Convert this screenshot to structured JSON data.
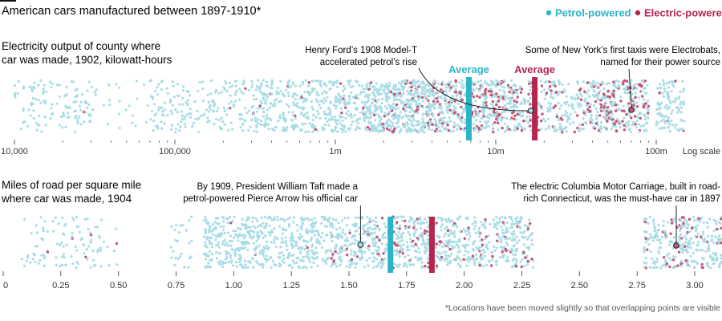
{
  "title": "American cars manufactured between 1897-1910*",
  "legend": [
    {
      "label": "Petrol-powered",
      "color": "#2bb5c8"
    },
    {
      "label": "Electric-powered",
      "color": "#b5264f"
    }
  ],
  "colors": {
    "petrol_dot": "#a9dde6",
    "electric_dot": "#c2577a",
    "petrol_avg": "#2bb5c8",
    "electric_avg": "#b5264f",
    "axis": "#333333"
  },
  "footnote": "*Locations have been moved slightly so that overlapping points are visible",
  "chart_data": [
    {
      "type": "scatter",
      "title": "Electricity output of county where car was made, 1902, kilowatt-hours",
      "title_lines": [
        "Electricity output of county where",
        "car was made, 1902, kilowatt-hours"
      ],
      "scale": "log",
      "scale_label": "Log scale",
      "xlim": [
        10000,
        150000000
      ],
      "ticks": [
        {
          "value": 10000,
          "label": "10,000"
        },
        {
          "value": 100000,
          "label": "100,000"
        },
        {
          "value": 1000000,
          "label": "1m"
        },
        {
          "value": 10000000,
          "label": "10m"
        },
        {
          "value": 100000000,
          "label": "100m"
        }
      ],
      "averages": [
        {
          "series": "Petrol-powered",
          "value": 6800000,
          "label": "Average"
        },
        {
          "series": "Electric-powered",
          "value": 17500000,
          "label": "Average"
        }
      ],
      "annotations": [
        {
          "lines": [
            "Henry Ford’s 1908 Model-T",
            "accelerated petrol’s rise"
          ],
          "value": 16500000,
          "series": "Petrol-powered"
        },
        {
          "lines": [
            "Some of New York’s first taxis were Electrobats,",
            "named for their power source"
          ],
          "value": 70000000,
          "series": "Electric-powered"
        }
      ],
      "clusters": [
        {
          "lo": 10000,
          "hi": 30000,
          "n": 120,
          "electric": 0.02
        },
        {
          "lo": 30000,
          "hi": 70000,
          "n": 25,
          "electric": 0.0
        },
        {
          "lo": 70000,
          "hi": 300000,
          "n": 190,
          "electric": 0.01
        },
        {
          "lo": 300000,
          "hi": 1500000,
          "n": 420,
          "electric": 0.03
        },
        {
          "lo": 1500000,
          "hi": 4000000,
          "n": 500,
          "electric": 0.1
        },
        {
          "lo": 4000000,
          "hi": 12000000,
          "n": 430,
          "electric": 0.28
        },
        {
          "lo": 12000000,
          "hi": 40000000,
          "n": 320,
          "electric": 0.22
        },
        {
          "lo": 40000000,
          "hi": 90000000,
          "n": 300,
          "electric": 0.28
        },
        {
          "lo": 100000000,
          "hi": 150000000,
          "n": 110,
          "electric": 0.06
        }
      ]
    },
    {
      "type": "scatter",
      "title": "Miles of road per square mile where car was made, 1904",
      "title_lines": [
        "Miles of road per square mile",
        "where car was made, 1904"
      ],
      "scale": "linear",
      "xlim": [
        0,
        3.15
      ],
      "ticks": [
        {
          "value": 0,
          "label": "0"
        },
        {
          "value": 0.25,
          "label": "0.25"
        },
        {
          "value": 0.5,
          "label": "0.50"
        },
        {
          "value": 0.75,
          "label": "0.75"
        },
        {
          "value": 1.0,
          "label": "1.00"
        },
        {
          "value": 1.25,
          "label": "1.25"
        },
        {
          "value": 1.5,
          "label": "1.50"
        },
        {
          "value": 1.75,
          "label": "1.75"
        },
        {
          "value": 2.0,
          "label": "2.00"
        },
        {
          "value": 2.25,
          "label": "2.25"
        },
        {
          "value": 2.5,
          "label": "2.50"
        },
        {
          "value": 2.75,
          "label": "2.75"
        },
        {
          "value": 3.0,
          "label": "3.00"
        }
      ],
      "averages": [
        {
          "series": "Petrol-powered",
          "value": 1.68
        },
        {
          "series": "Electric-powered",
          "value": 1.86
        }
      ],
      "annotations": [
        {
          "lines": [
            "By 1909, President William Taft made a",
            "petrol-powered Pierce Arrow his official car"
          ],
          "value": 1.55,
          "series": "Petrol-powered"
        },
        {
          "lines": [
            "The electric Columbia Motor Carriage, built in road-",
            "rich Connecticut, was the must-have car in 1897"
          ],
          "value": 2.92,
          "series": "Electric-powered"
        }
      ],
      "clusters": [
        {
          "lo": 0.08,
          "hi": 0.5,
          "n": 110,
          "electric": 0.1
        },
        {
          "lo": 0.72,
          "hi": 0.82,
          "n": 25,
          "electric": 0.0
        },
        {
          "lo": 0.87,
          "hi": 1.35,
          "n": 470,
          "electric": 0.01
        },
        {
          "lo": 1.35,
          "hi": 1.42,
          "n": 50,
          "electric": 0.0
        },
        {
          "lo": 1.42,
          "hi": 2.3,
          "n": 850,
          "electric": 0.13
        },
        {
          "lo": 2.78,
          "hi": 3.12,
          "n": 300,
          "electric": 0.13
        }
      ]
    }
  ]
}
